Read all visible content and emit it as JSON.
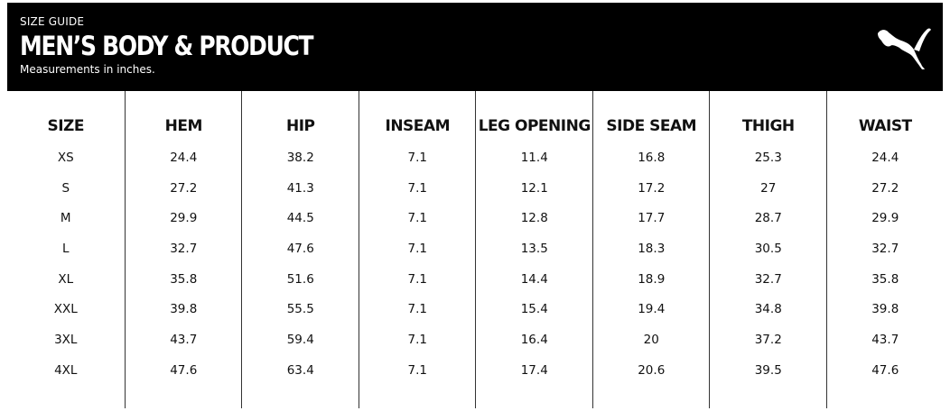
{
  "header": {
    "kicker": "SIZE GUIDE",
    "title": "MEN’S BODY & PRODUCT",
    "subtitle": "Measurements in inches.",
    "logo": "PUMA",
    "logo_icon": "puma-cat-icon"
  },
  "table": {
    "columns": [
      "SIZE",
      "HEM",
      "HIP",
      "INSEAM",
      "LEG OPENING",
      "SIDE SEAM",
      "THIGH",
      "WAIST"
    ],
    "rows": [
      [
        "XS",
        "24.4",
        "38.2",
        "7.1",
        "11.4",
        "16.8",
        "25.3",
        "24.4"
      ],
      [
        "S",
        "27.2",
        "41.3",
        "7.1",
        "12.1",
        "17.2",
        "27",
        "27.2"
      ],
      [
        "M",
        "29.9",
        "44.5",
        "7.1",
        "12.8",
        "17.7",
        "28.7",
        "29.9"
      ],
      [
        "L",
        "32.7",
        "47.6",
        "7.1",
        "13.5",
        "18.3",
        "30.5",
        "32.7"
      ],
      [
        "XL",
        "35.8",
        "51.6",
        "7.1",
        "14.4",
        "18.9",
        "32.7",
        "35.8"
      ],
      [
        "XXL",
        "39.8",
        "55.5",
        "7.1",
        "15.4",
        "19.4",
        "34.8",
        "39.8"
      ],
      [
        "3XL",
        "43.7",
        "59.4",
        "7.1",
        "16.4",
        "20",
        "37.2",
        "43.7"
      ],
      [
        "4XL",
        "47.6",
        "63.4",
        "7.1",
        "17.4",
        "20.6",
        "39.5",
        "47.6"
      ]
    ]
  }
}
